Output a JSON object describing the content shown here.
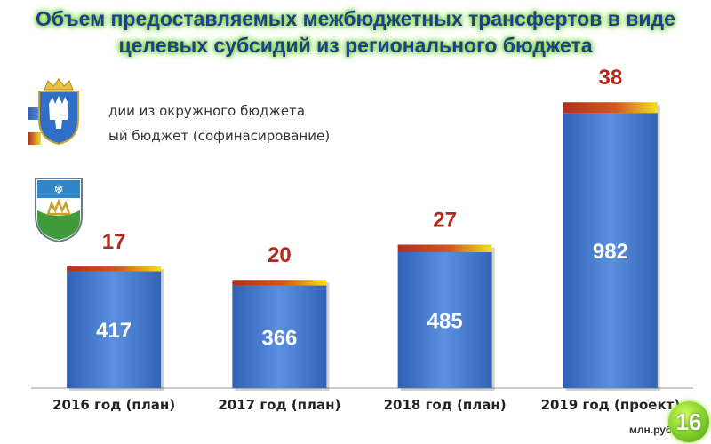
{
  "title": "Объем предоставляемых межбюджетных трансфертов в виде целевых субсидий из регионального бюджета",
  "legend": [
    {
      "label": "дии из окружного бюджета",
      "color": "#3d72c8"
    },
    {
      "label": "ый бюджет (софинасирование)",
      "color": "#c0392b"
    }
  ],
  "units": "млн.руб.",
  "page_number": "16",
  "chart_data": {
    "type": "bar",
    "stacked": true,
    "categories": [
      "2016 год (план)",
      "2017 год (план)",
      "2018 год (план)",
      "2019 год (проект)"
    ],
    "series": [
      {
        "name": "дии из окружного бюджета",
        "values": [
          417,
          366,
          485,
          982
        ],
        "color": "#3d72c8"
      },
      {
        "name": "ый бюджет (софинасирование)",
        "values": [
          17,
          20,
          27,
          38
        ],
        "color": "#c0392b"
      }
    ],
    "grid": false,
    "legend_position": "top-left",
    "ylim": [
      0,
      1100
    ]
  }
}
